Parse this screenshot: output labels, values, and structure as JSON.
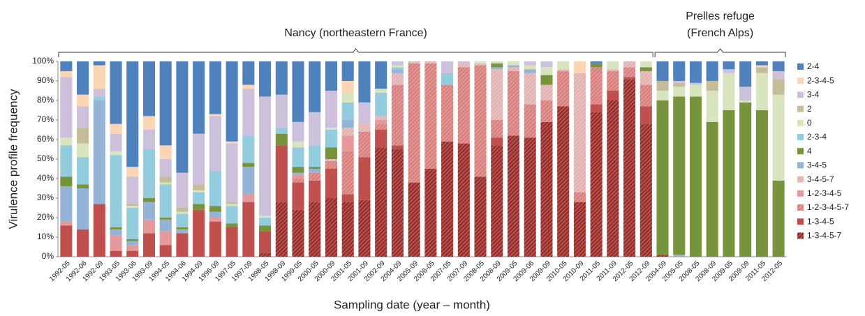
{
  "chart_data": {
    "type": "stacked-bar",
    "y_label": "Virulence profile frequency",
    "x_label": "Sampling date (year – month)",
    "ylim": [
      0,
      100
    ],
    "yticks": [
      {
        "value": 0,
        "label": "0%"
      },
      {
        "value": 10,
        "label": "10%"
      },
      {
        "value": 20,
        "label": "20%"
      },
      {
        "value": 30,
        "label": "30%"
      },
      {
        "value": 40,
        "label": "40%"
      },
      {
        "value": 50,
        "label": "50%"
      },
      {
        "value": 60,
        "label": "60%"
      },
      {
        "value": 70,
        "label": "70%"
      },
      {
        "value": 80,
        "label": "80%"
      },
      {
        "value": 90,
        "label": "90%"
      },
      {
        "value": 100,
        "label": "100%"
      }
    ],
    "grid": false,
    "legend": "right",
    "groups": [
      {
        "name": [
          "Nancy (northeastern France)"
        ],
        "categories": [
          "1992-05",
          "1992-06",
          "1992-09",
          "1993-05",
          "1993-06",
          "1993-09",
          "1994-05",
          "1994-06",
          "1994-09",
          "1996-09",
          "1997-05",
          "1997-09",
          "1998-05",
          "1998-09",
          "1999-05",
          "2000-05",
          "2000-09",
          "2001-05",
          "2001-09",
          "2002-09",
          "2004-09",
          "2005-09",
          "2006-05",
          "2007-05",
          "2007-09",
          "2008-05",
          "2008-09",
          "2009-05",
          "2009-06",
          "2009-09",
          "2010-05",
          "2010-09",
          "2011-05",
          "2011-09",
          "2012-05",
          "2012-09"
        ]
      },
      {
        "name": [
          "Prelles refuge",
          "(French Alps)"
        ],
        "categories": [
          "2004-09",
          "2005-05",
          "2008-05",
          "2008-09",
          "2009-05",
          "2009-09",
          "2011-05",
          "2012-05"
        ]
      }
    ],
    "series": [
      {
        "name": "1-3-4-5-7",
        "color": "#9b2d2a",
        "hatch": true,
        "values": [
          0,
          0,
          0,
          0,
          0,
          0,
          0,
          0,
          0,
          0,
          0,
          0,
          2,
          28,
          24,
          28,
          30,
          28,
          29,
          56,
          55,
          38,
          45,
          59,
          58,
          41,
          57,
          62,
          61,
          69,
          77,
          28,
          74,
          80,
          91,
          68,
          1,
          0,
          0,
          0,
          0,
          0,
          0,
          0
        ]
      },
      {
        "name": "1-3-4-5",
        "color": "#c0504d",
        "hatch": false,
        "values": [
          16,
          14,
          27,
          3,
          3,
          12,
          6,
          12,
          24,
          18,
          15,
          28,
          11,
          29,
          14,
          11,
          15,
          4,
          22,
          9,
          2,
          0,
          0,
          0,
          0,
          0,
          4,
          0,
          0,
          0,
          0,
          0,
          4,
          5,
          1,
          9,
          0,
          0,
          0,
          0,
          0,
          0,
          0,
          0
        ]
      },
      {
        "name": "1-2-3-4-5-7",
        "color": "#d9807e",
        "hatch": true,
        "values": [
          0,
          0,
          0,
          0,
          0,
          0,
          0,
          0,
          0,
          0,
          0,
          0,
          0,
          0,
          2,
          4,
          4,
          22,
          13,
          3,
          31,
          61,
          54,
          29,
          39,
          57,
          9,
          33,
          17,
          11,
          18,
          5,
          19,
          10,
          5,
          11,
          0,
          0,
          0,
          0,
          0,
          0,
          0,
          0
        ]
      },
      {
        "name": "1-2-3-4-5",
        "color": "#e6999a",
        "hatch": false,
        "values": [
          2,
          0,
          0,
          8,
          3,
          7,
          7,
          0,
          0,
          2,
          0,
          4,
          0,
          0,
          2,
          0,
          0,
          8,
          0,
          2,
          0,
          0,
          0,
          0,
          0,
          0,
          0,
          0,
          0,
          0,
          0,
          0,
          0,
          0,
          0,
          0,
          0,
          0,
          0,
          0,
          0,
          0,
          0,
          0
        ]
      },
      {
        "name": "3-4-5-7",
        "color": "#e3b3b2",
        "hatch": true,
        "values": [
          0,
          0,
          0,
          0,
          0,
          0,
          0,
          0,
          0,
          0,
          0,
          0,
          0,
          0,
          0,
          0,
          1,
          4,
          4,
          2,
          6,
          1,
          1,
          0,
          2,
          1,
          26,
          2,
          16,
          8,
          1,
          61,
          0,
          1,
          3,
          7,
          0,
          0,
          0,
          0,
          0,
          0,
          0,
          0
        ]
      },
      {
        "name": "3-4-5",
        "color": "#95b3d7",
        "hatch": false,
        "values": [
          18,
          21,
          53,
          3,
          2,
          9,
          6,
          2,
          0,
          3,
          0,
          14,
          0,
          0,
          1,
          2,
          0,
          4,
          0,
          0,
          2,
          0,
          0,
          0,
          0,
          0,
          1,
          1,
          2,
          0,
          0,
          0,
          0,
          0,
          0,
          0,
          0,
          1,
          0,
          0,
          0,
          0,
          0,
          0
        ]
      },
      {
        "name": "4",
        "color": "#77933c",
        "hatch": false,
        "values": [
          5,
          2,
          0,
          1,
          1,
          2,
          1,
          1,
          3,
          3,
          2,
          2,
          3,
          6,
          3,
          1,
          6,
          0,
          0,
          0,
          0,
          0,
          0,
          0,
          0,
          0,
          2,
          0,
          0,
          5,
          0,
          0,
          2,
          0,
          0,
          2,
          79,
          81,
          82,
          69,
          75,
          79,
          75,
          39
        ]
      },
      {
        "name": "2-3-4",
        "color": "#93cddd",
        "hatch": false,
        "values": [
          16,
          14,
          2,
          37,
          16,
          25,
          17,
          7,
          6,
          18,
          9,
          14,
          4,
          3,
          10,
          11,
          9,
          9,
          0,
          12,
          1,
          0,
          0,
          6,
          0,
          0,
          0,
          0,
          0,
          0,
          0,
          0,
          0,
          0,
          0,
          0,
          0,
          0,
          0,
          0,
          0,
          0,
          0,
          0
        ]
      },
      {
        "name": "0",
        "color": "#d7e4bd",
        "hatch": false,
        "values": [
          4,
          7,
          0,
          2,
          1,
          0,
          1,
          1,
          1,
          0,
          1,
          0,
          1,
          0,
          3,
          0,
          1,
          5,
          0,
          2,
          1,
          0,
          0,
          0,
          0,
          1,
          1,
          2,
          2,
          4,
          4,
          0,
          0,
          4,
          0,
          3,
          5,
          5,
          6,
          16,
          19,
          1,
          19,
          44
        ]
      },
      {
        "name": "2",
        "color": "#c4bd97",
        "hatch": false,
        "values": [
          0,
          8,
          0,
          0,
          1,
          0,
          3,
          2,
          3,
          0,
          1,
          0,
          0,
          0,
          0,
          0,
          0,
          0,
          0,
          0,
          0,
          0,
          0,
          0,
          0,
          0,
          0,
          0,
          0,
          0,
          0,
          0,
          0,
          0,
          0,
          0,
          5,
          2,
          0,
          5,
          0,
          0,
          3,
          8
        ]
      },
      {
        "name": "3-4",
        "color": "#ccc0da",
        "hatch": false,
        "values": [
          31,
          11,
          4,
          9,
          14,
          10,
          9,
          18,
          26,
          28,
          30,
          24,
          61,
          17,
          10,
          17,
          19,
          0,
          11,
          0,
          2,
          0,
          0,
          6,
          1,
          0,
          0,
          0,
          2,
          3,
          0,
          0,
          0,
          0,
          0,
          0,
          0,
          1,
          1,
          0,
          2,
          7,
          0,
          4
        ]
      },
      {
        "name": "2-3-4-5",
        "color": "#fcd5b5",
        "hatch": false,
        "values": [
          3,
          6,
          12,
          5,
          5,
          7,
          7,
          0,
          0,
          1,
          1,
          2,
          0,
          0,
          0,
          0,
          0,
          6,
          0,
          0,
          0,
          0,
          0,
          0,
          0,
          0,
          0,
          0,
          0,
          0,
          0,
          6,
          0,
          0,
          0,
          0,
          0,
          0,
          0,
          0,
          0,
          0,
          1,
          0
        ]
      },
      {
        "name": "2-4",
        "color": "#4f81bd",
        "hatch": false,
        "values": [
          5,
          17,
          2,
          32,
          54,
          28,
          43,
          57,
          37,
          27,
          41,
          12,
          18,
          17,
          31,
          26,
          15,
          10,
          21,
          14,
          0,
          0,
          0,
          0,
          0,
          0,
          0,
          0,
          0,
          0,
          0,
          0,
          1,
          0,
          0,
          0,
          10,
          10,
          11,
          10,
          4,
          13,
          2,
          5
        ]
      }
    ]
  }
}
